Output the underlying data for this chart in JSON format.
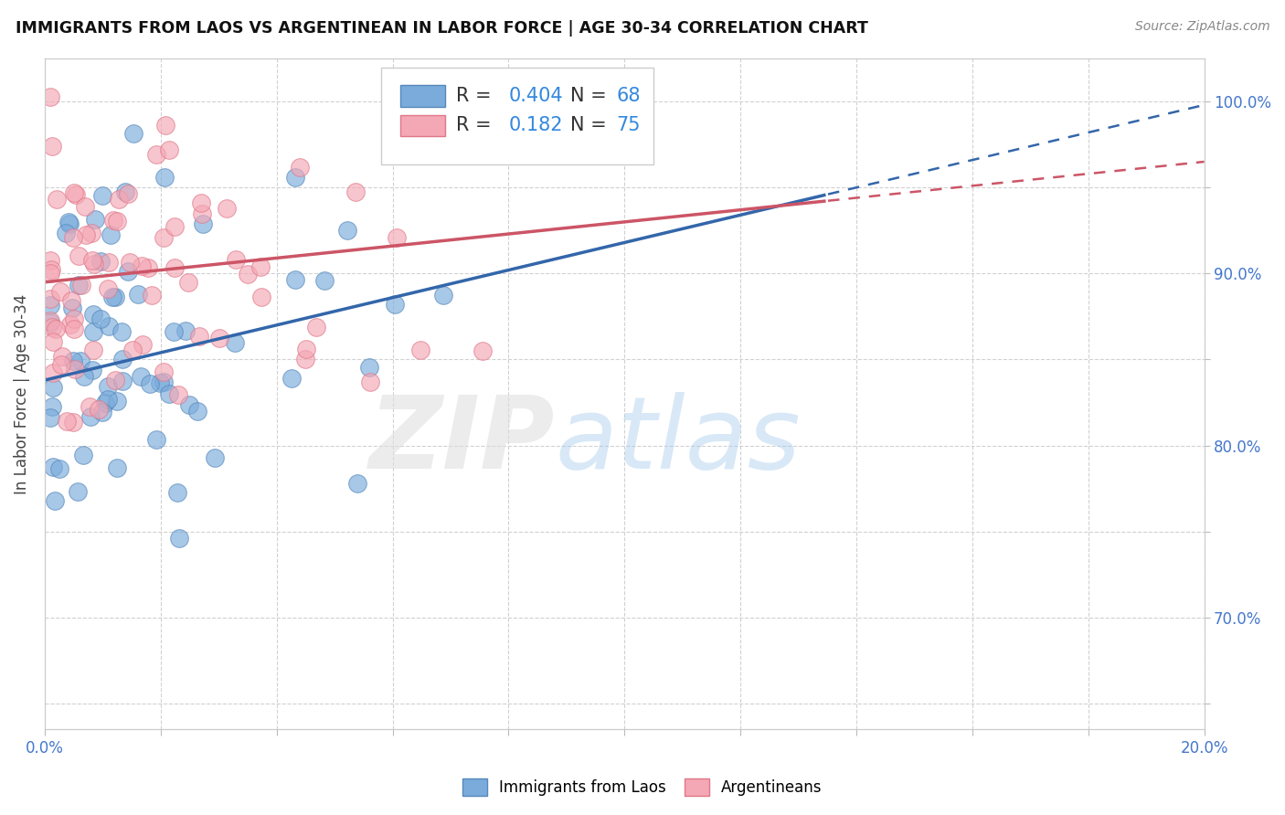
{
  "title": "IMMIGRANTS FROM LAOS VS ARGENTINEAN IN LABOR FORCE | AGE 30-34 CORRELATION CHART",
  "source": "Source: ZipAtlas.com",
  "ylabel": "In Labor Force | Age 30-34",
  "xlim": [
    0.0,
    0.2
  ],
  "ylim": [
    0.635,
    1.025
  ],
  "xtick_positions": [
    0.0,
    0.02,
    0.04,
    0.06,
    0.08,
    0.1,
    0.12,
    0.14,
    0.16,
    0.18,
    0.2
  ],
  "ytick_positions": [
    0.65,
    0.7,
    0.75,
    0.8,
    0.85,
    0.9,
    0.95,
    1.0
  ],
  "ytick_labels": [
    "",
    "70.0%",
    "",
    "80.0%",
    "",
    "90.0%",
    "",
    "100.0%"
  ],
  "blue_R": 0.404,
  "blue_N": 68,
  "pink_R": 0.182,
  "pink_N": 75,
  "blue_color": "#7AABDB",
  "pink_color": "#F4A7B5",
  "blue_edge": "#5588BB",
  "pink_edge": "#E07788",
  "blue_label": "Immigrants from Laos",
  "pink_label": "Argentineans",
  "blue_line_color": "#3366AA",
  "pink_line_color": "#CC5566",
  "legend_R_color": "#3388DD",
  "legend_N_color": "#3388DD",
  "watermark_zip_color": "#DDDDDD",
  "watermark_atlas_color": "#AACCDD"
}
